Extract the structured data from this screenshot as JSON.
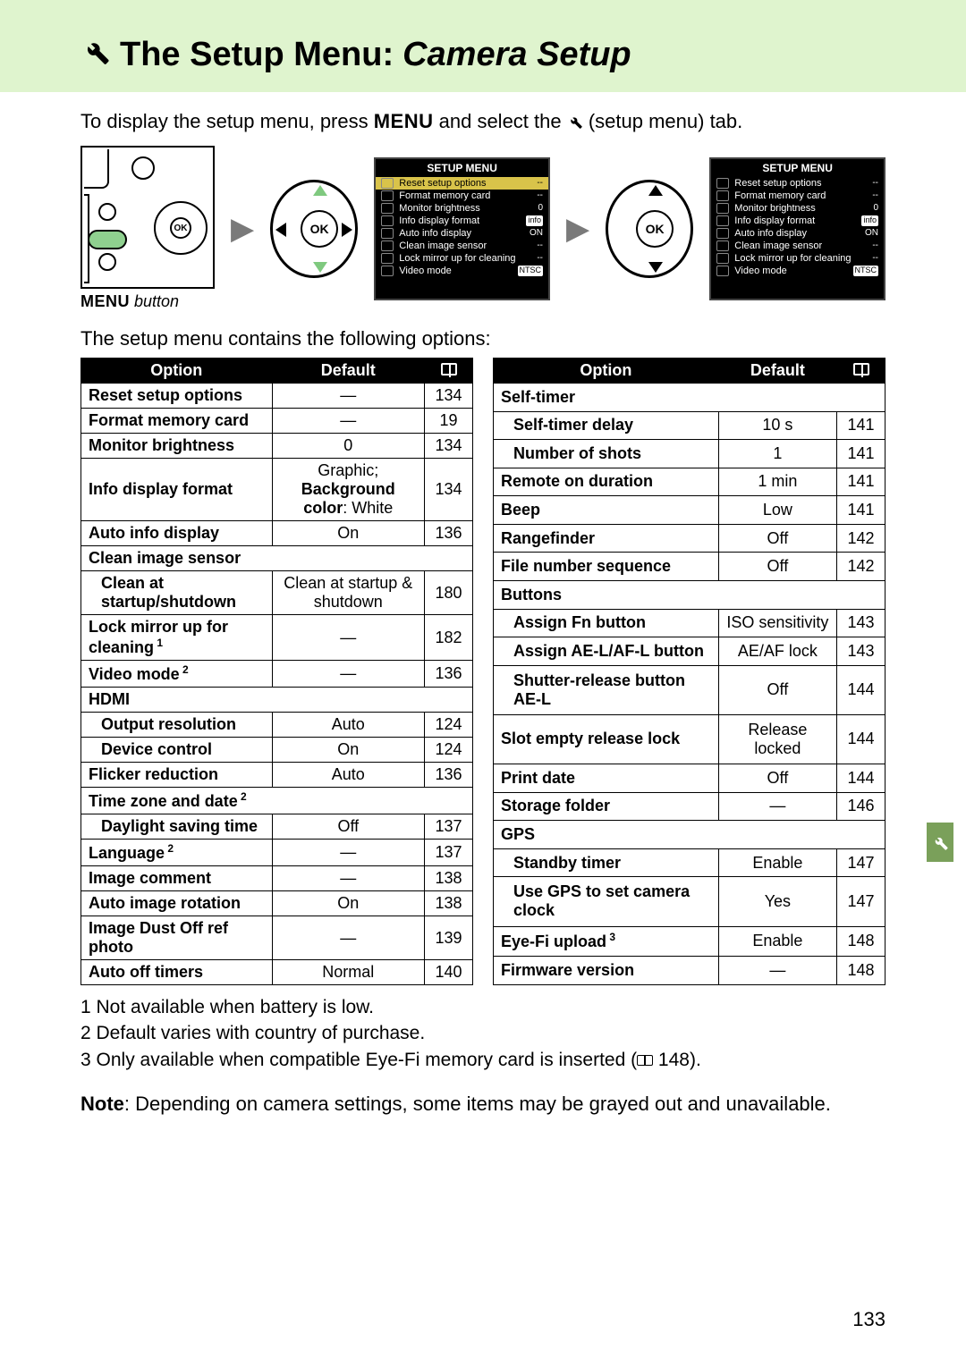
{
  "header": {
    "icon_name": "wrench-icon",
    "title_prefix": "The Setup Menu:",
    "title_italic": "Camera Setup"
  },
  "intro": {
    "text_before": "To display the setup menu, press ",
    "menu_word": "MENU",
    "text_mid": " and select the ",
    "icon_name": "wrench-icon",
    "text_after": " (setup menu) tab."
  },
  "diagram": {
    "menu_button_label_bold": "MENU",
    "menu_button_label_italic": " button",
    "ok_label": "OK",
    "screen_title": "SETUP MENU",
    "screen1_rows": [
      {
        "label": "Reset setup options",
        "val": "--",
        "hl": true
      },
      {
        "label": "Format memory card",
        "val": "--"
      },
      {
        "label": "Monitor brightness",
        "val": "0"
      },
      {
        "label": "Info display format",
        "val": "info",
        "badge": true
      },
      {
        "label": "Auto info display",
        "val": "ON"
      },
      {
        "label": "Clean image sensor",
        "val": "--"
      },
      {
        "label": "Lock mirror up for cleaning",
        "val": "--"
      },
      {
        "label": "Video mode",
        "val": "NTSC",
        "badge": true
      }
    ],
    "screen2_rows": [
      {
        "label": "Reset setup options",
        "val": "--"
      },
      {
        "label": "Format memory card",
        "val": "--"
      },
      {
        "label": "Monitor brightness",
        "val": "0"
      },
      {
        "label": "Info display format",
        "val": "info",
        "badge": true
      },
      {
        "label": "Auto info display",
        "val": "ON"
      },
      {
        "label": "Clean image sensor",
        "val": "--"
      },
      {
        "label": "Lock mirror up for cleaning",
        "val": "--"
      },
      {
        "label": "Video mode",
        "val": "NTSC",
        "badge": true
      }
    ]
  },
  "options_intro": "The setup menu contains the following options:",
  "table_headers": {
    "option": "Option",
    "default": "Default",
    "page_icon": "book-icon"
  },
  "left_table": [
    {
      "opt": "Reset setup options",
      "def": "—",
      "pg": "134"
    },
    {
      "opt": "Format memory card",
      "def": "—",
      "pg": "19"
    },
    {
      "opt": "Monitor brightness",
      "def": "0",
      "pg": "134"
    },
    {
      "opt": "Info display format",
      "def_html": "Graphic;<br><b>Background color</b>: White",
      "pg": "134"
    },
    {
      "opt": "Auto info display",
      "def": "On",
      "pg": "136"
    },
    {
      "opt": "Clean image sensor",
      "section": true
    },
    {
      "opt": "Clean at startup/shutdown",
      "def": "Clean at startup & shutdown",
      "pg": "180",
      "indent": true
    },
    {
      "opt": "Lock mirror up for cleaning",
      "sup": "1",
      "def": "—",
      "pg": "182"
    },
    {
      "opt": "Video mode",
      "sup": "2",
      "def": "—",
      "pg": "136"
    },
    {
      "opt": "HDMI",
      "section": true
    },
    {
      "opt": "Output resolution",
      "def": "Auto",
      "pg": "124",
      "indent": true
    },
    {
      "opt": "Device control",
      "def": "On",
      "pg": "124",
      "indent": true
    },
    {
      "opt": "Flicker reduction",
      "def": "Auto",
      "pg": "136"
    },
    {
      "opt": "Time zone and date",
      "sup": "2",
      "section": true
    },
    {
      "opt": "Daylight saving time",
      "def": "Off",
      "pg": "137",
      "indent": true
    },
    {
      "opt": "Language",
      "sup": "2",
      "def": "—",
      "pg": "137"
    },
    {
      "opt": "Image comment",
      "def": "—",
      "pg": "138"
    },
    {
      "opt": "Auto image rotation",
      "def": "On",
      "pg": "138"
    },
    {
      "opt": "Image Dust Off ref photo",
      "def": "—",
      "pg": "139"
    },
    {
      "opt": "Auto off timers",
      "def": "Normal",
      "pg": "140"
    }
  ],
  "right_table": [
    {
      "opt": "Self-timer",
      "section": true
    },
    {
      "opt": "Self-timer delay",
      "def": "10 s",
      "pg": "141",
      "indent": true
    },
    {
      "opt": "Number of shots",
      "def": "1",
      "pg": "141",
      "indent": true
    },
    {
      "opt": "Remote on duration",
      "def": "1 min",
      "pg": "141"
    },
    {
      "opt": "Beep",
      "def": "Low",
      "pg": "141"
    },
    {
      "opt": "Rangefinder",
      "def": "Off",
      "pg": "142"
    },
    {
      "opt": "File number sequence",
      "def": "Off",
      "pg": "142"
    },
    {
      "opt": "Buttons",
      "section": true
    },
    {
      "opt": "Assign Fn button",
      "def": "ISO sensitivity",
      "pg": "143",
      "indent": true
    },
    {
      "opt": "Assign AE-L/AF-L button",
      "def": "AE/AF lock",
      "pg": "143",
      "indent": true
    },
    {
      "opt": "Shutter-release button AE-L",
      "def": "Off",
      "pg": "144",
      "indent": true
    },
    {
      "opt": "Slot empty release lock",
      "def": "Release locked",
      "pg": "144"
    },
    {
      "opt": "Print date",
      "def": "Off",
      "pg": "144"
    },
    {
      "opt": "Storage folder",
      "def": "—",
      "pg": "146"
    },
    {
      "opt": "GPS",
      "section": true
    },
    {
      "opt": "Standby timer",
      "def": "Enable",
      "pg": "147",
      "indent": true
    },
    {
      "opt": "Use GPS to set camera clock",
      "def": "Yes",
      "pg": "147",
      "indent": true
    },
    {
      "opt": "Eye-Fi upload",
      "sup": "3",
      "def": "Enable",
      "pg": "148"
    },
    {
      "opt": "Firmware version",
      "def": "—",
      "pg": "148"
    }
  ],
  "footnotes": [
    "1  Not available when battery is low.",
    "2  Default varies with country of purchase.",
    "3  Only available when compatible Eye-Fi memory card is inserted (📖 148)."
  ],
  "note": {
    "bold": "Note",
    "text": ": Depending on camera settings, some items may be grayed out and unavailable."
  },
  "page_number": "133",
  "colors": {
    "header_bg": "#dff4ce",
    "table_header_bg": "#000000",
    "table_header_fg": "#ffffff",
    "screen_bg": "#000000",
    "screen_hl": "#d9c34a",
    "side_tab": "#7aa05a"
  }
}
